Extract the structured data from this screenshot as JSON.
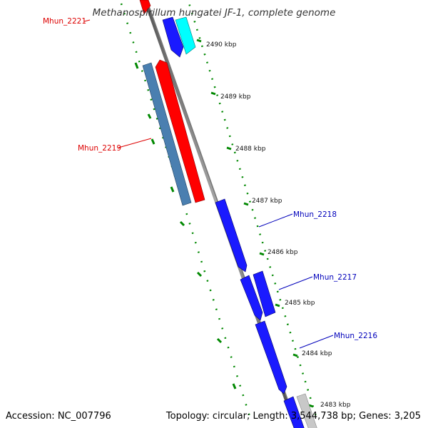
{
  "title": "Methanospirillum hungatei JF-1, complete genome",
  "accession": "Accession: NC_007796",
  "summary": "Topology: circular; Length: 3,544,738 bp; Genes: 3,205",
  "kbp_ticks": [
    "2490 kbp",
    "2489 kbp",
    "2488 kbp",
    "2487 kbp",
    "2486 kbp",
    "2485 kbp",
    "2484 kbp",
    "2483 kbp"
  ],
  "genes": [
    {
      "name": "Mhun_2221",
      "color": "#dd0000"
    },
    {
      "name": "Mhun_2219",
      "color": "#dd0000"
    },
    {
      "name": "Mhun_2218",
      "color": "#0000bb"
    },
    {
      "name": "Mhun_2217",
      "color": "#0000bb"
    },
    {
      "name": "Mhun_2216",
      "color": "#0000bb"
    }
  ],
  "colors": {
    "forward_cds": "#ff0000",
    "reverse_cds": "#0000ee",
    "orf": "#4a7fb0",
    "rna": "#00ffff",
    "other": "#c8c8c8",
    "backbone": "#888888",
    "gc_skew_dots": "#008800"
  }
}
